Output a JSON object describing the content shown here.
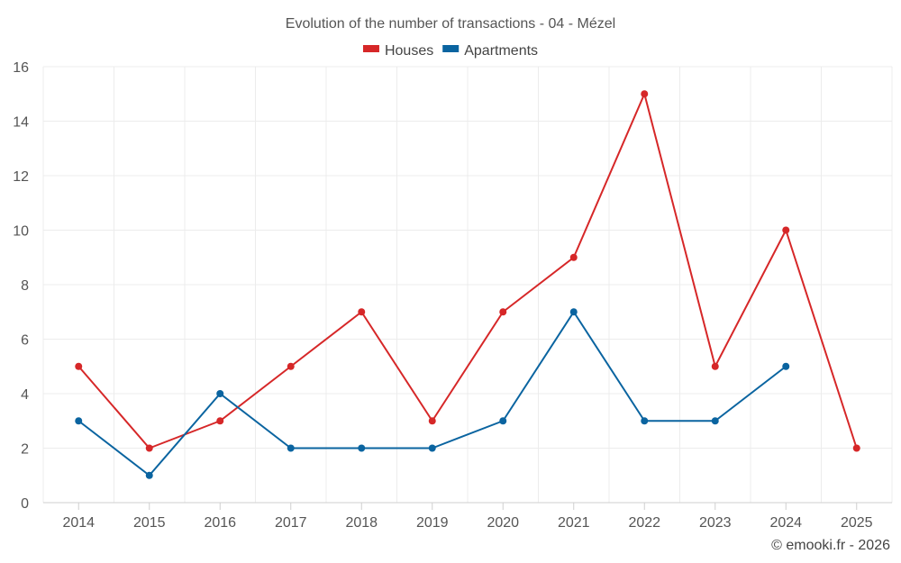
{
  "chart_data": {
    "type": "line",
    "title": "Evolution of the number of transactions - 04 - Mézel",
    "categories": [
      "2014",
      "2015",
      "2016",
      "2017",
      "2018",
      "2019",
      "2020",
      "2021",
      "2022",
      "2023",
      "2024",
      "2025"
    ],
    "ylim": [
      0,
      16
    ],
    "yticks": [
      0,
      2,
      4,
      6,
      8,
      10,
      12,
      14,
      16
    ],
    "grid": true,
    "legend_position": "top-center",
    "series": [
      {
        "name": "Houses",
        "color": "#d62728",
        "values": [
          5,
          2,
          3,
          5,
          7,
          3,
          7,
          9,
          15,
          5,
          10,
          2
        ]
      },
      {
        "name": "Apartments",
        "color": "#0a64a0",
        "values": [
          3,
          1,
          4,
          2,
          2,
          2,
          3,
          7,
          3,
          3,
          5,
          null
        ]
      }
    ],
    "xlabel": "",
    "ylabel": ""
  },
  "credit": "© emooki.fr - 2026"
}
